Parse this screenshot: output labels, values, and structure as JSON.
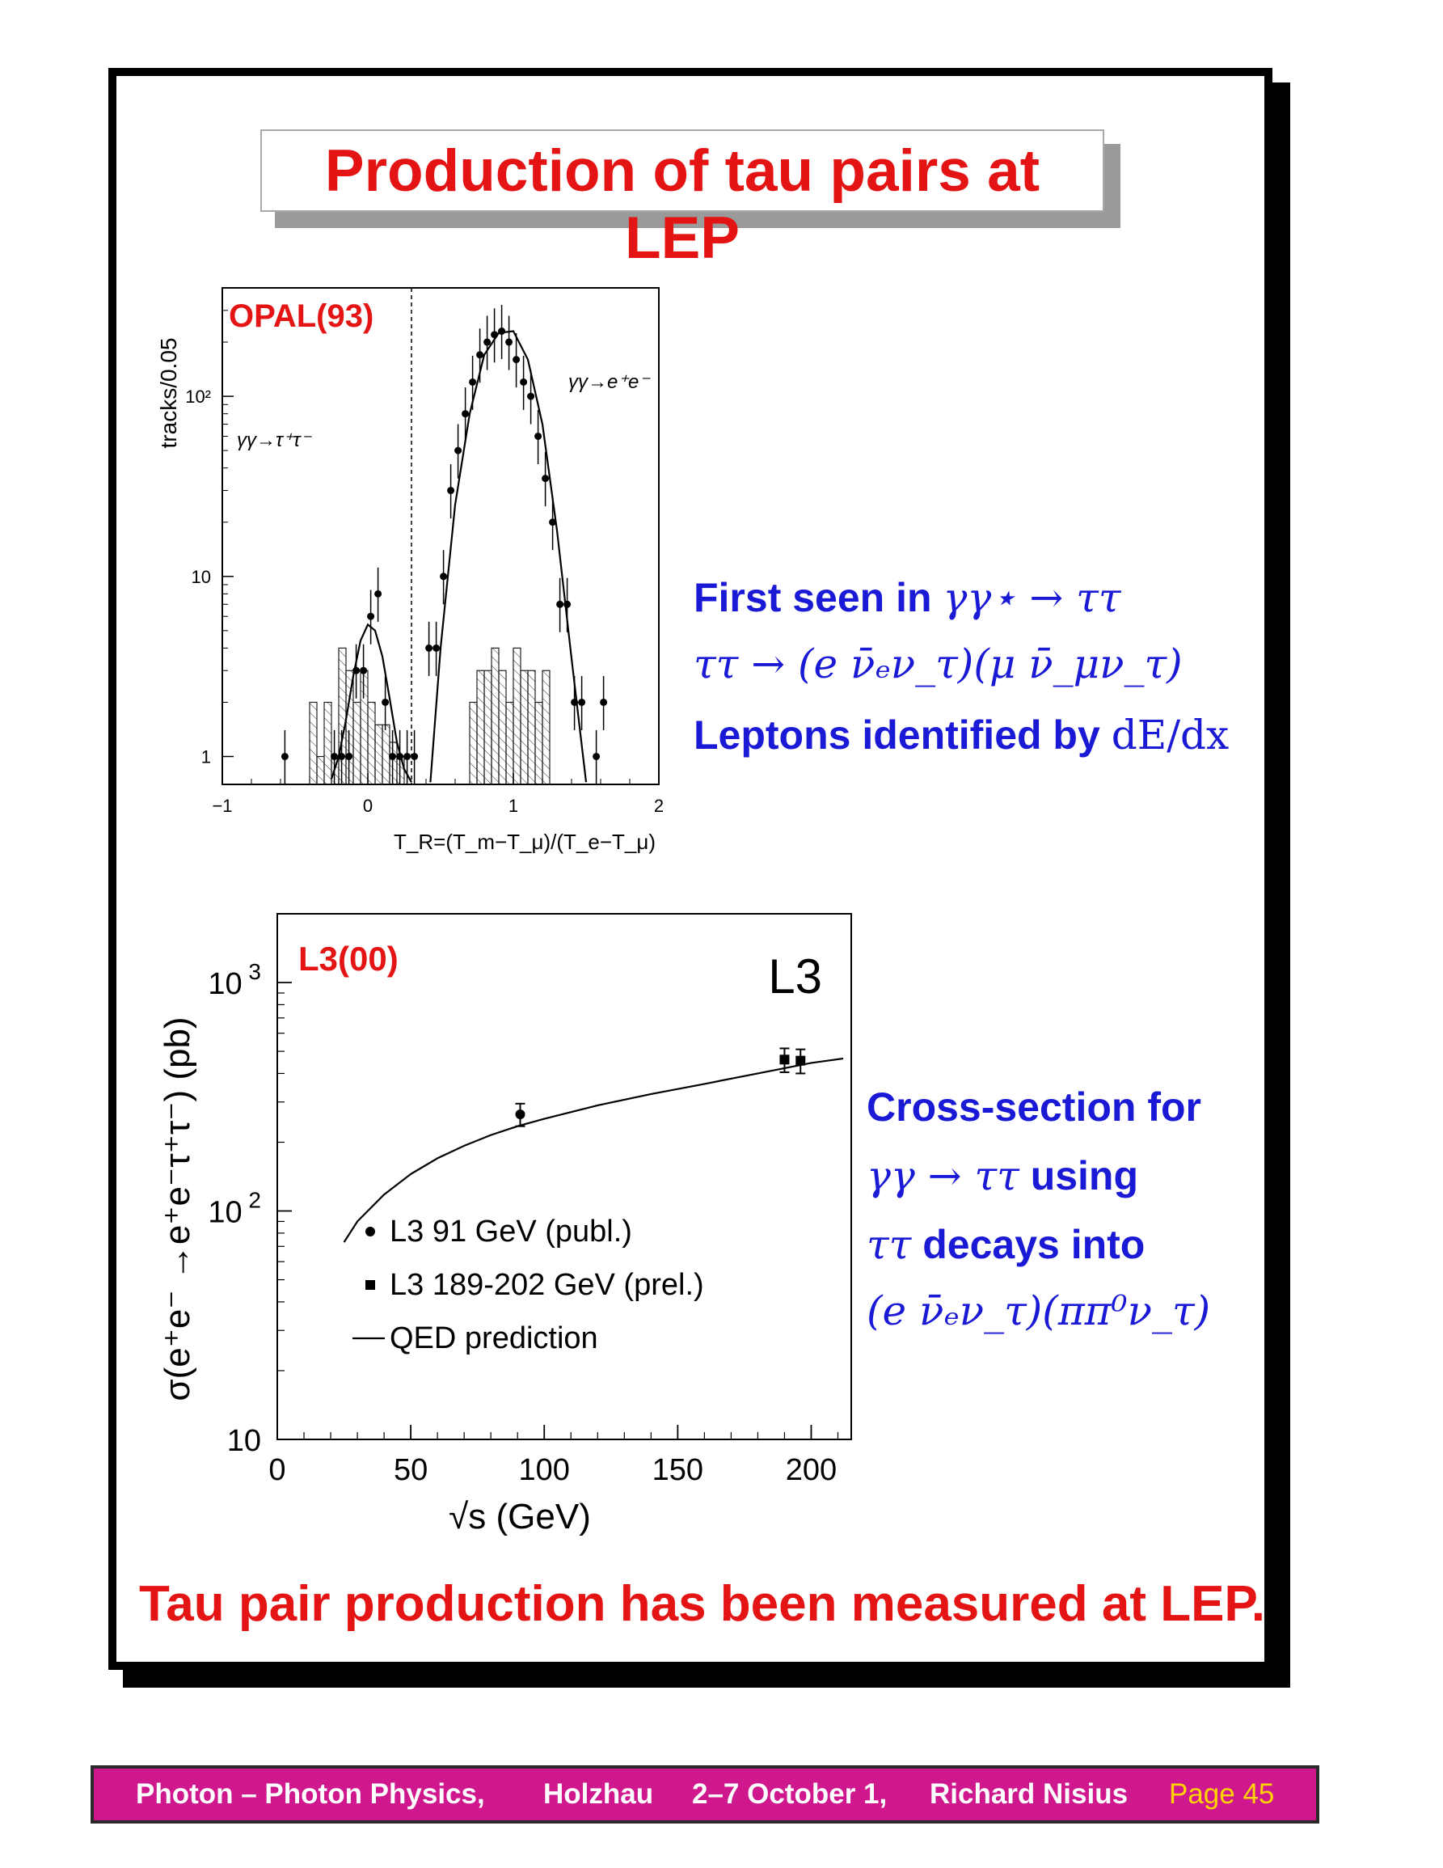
{
  "slide": {
    "title": "Production of tau pairs at LEP",
    "conclusion": "Tau pair production has been measured at LEP."
  },
  "notes_top": {
    "line1_text": "First seen in",
    "line1_math": "γγ⋆ → ττ",
    "line2_math": "ττ → (e ν̄ₑν_τ)(μ ν̄_μν_τ)",
    "line3_text": "Leptons identified by",
    "line3_math": "dE/dx"
  },
  "notes_bottom": {
    "line1": "Cross-section for",
    "line2_math": "γγ → ττ",
    "line2_text": "using",
    "line3_math": "ττ",
    "line3_text": "decays into",
    "line4_math": "(e ν̄ₑν_τ)(ππ⁰ν_τ)"
  },
  "footer": {
    "event": "Photon – Photon Physics,",
    "place": "Holzhau",
    "date": "2–7 October 1,",
    "author": "Richard Nisius",
    "page": "Page 45"
  },
  "colors": {
    "red": "#e41414",
    "blue": "#1a1ad6",
    "footer_bg": "#d0188e",
    "page_yellow": "#ffd400"
  },
  "chart_data": [
    {
      "type": "scatter",
      "experiment_label": "OPAL(93)",
      "xlabel": "T_R=(T_m−T_μ)/(T_e−T_μ)",
      "ylabel": "tracks/0.05",
      "yscale": "log",
      "xlim": [
        -1,
        2
      ],
      "ylim": [
        0.7,
        400
      ],
      "x_ticks": [
        "−1",
        "0",
        "1",
        "2"
      ],
      "y_ticks": [
        {
          "value": 1,
          "label": "1"
        },
        {
          "value": 10,
          "label": "10"
        },
        {
          "value": 100,
          "label": "10²"
        }
      ],
      "cut_line_x": 0.3,
      "annotations": [
        {
          "text": "γγ→τ⁺τ⁻",
          "region": "left"
        },
        {
          "text": "γγ→e⁺e⁻",
          "region": "right"
        }
      ],
      "series": [
        {
          "kind": "points",
          "x": [
            -0.57,
            -0.23,
            -0.18,
            -0.13,
            -0.08,
            -0.03,
            0.02,
            0.07,
            0.12,
            0.17,
            0.22,
            0.27,
            0.32,
            0.42,
            0.47,
            0.52,
            0.57,
            0.62,
            0.67,
            0.72,
            0.77,
            0.82,
            0.87,
            0.92,
            0.97,
            1.02,
            1.07,
            1.12,
            1.17,
            1.22,
            1.27,
            1.32,
            1.37,
            1.42,
            1.47,
            1.57,
            1.62
          ],
          "y": [
            1,
            1,
            1,
            1,
            3,
            3,
            6,
            8,
            2,
            1,
            1,
            1,
            1,
            4,
            4,
            10,
            30,
            50,
            80,
            120,
            170,
            200,
            220,
            230,
            200,
            160,
            120,
            100,
            60,
            35,
            20,
            7,
            7,
            2,
            2,
            1,
            2
          ]
        },
        {
          "kind": "curve",
          "name": "τ⁺τ⁻ fit",
          "x": [
            -0.25,
            -0.2,
            -0.15,
            -0.1,
            -0.05,
            0.0,
            0.05,
            0.1,
            0.15,
            0.2,
            0.25,
            0.3
          ],
          "y": [
            0.75,
            1.0,
            1.6,
            2.8,
            4.4,
            5.4,
            5.0,
            3.6,
            2.1,
            1.2,
            0.85,
            0.72
          ]
        },
        {
          "kind": "curve",
          "name": "e⁺e⁻ fit",
          "x": [
            0.43,
            0.5,
            0.6,
            0.7,
            0.8,
            0.9,
            1.0,
            1.1,
            1.2,
            1.3,
            1.4,
            1.5
          ],
          "y": [
            0.72,
            4,
            25,
            80,
            170,
            225,
            230,
            160,
            70,
            18,
            3.5,
            0.72
          ]
        },
        {
          "kind": "histogram",
          "name": "background",
          "bin_edges": [
            -0.4,
            -0.35,
            -0.3,
            -0.25,
            -0.2,
            -0.15,
            -0.1,
            -0.05,
            0.0,
            0.05,
            0.1,
            0.15,
            0.2,
            0.25,
            0.7,
            0.75,
            0.8,
            0.85,
            0.9,
            0.95,
            1.0,
            1.05,
            1.1,
            1.15,
            1.2,
            1.25
          ],
          "counts": [
            2,
            1,
            2,
            1,
            4,
            3,
            2,
            3,
            2,
            1.5,
            1.5,
            1.2,
            1,
            0,
            2,
            3,
            3,
            4,
            3,
            2,
            4,
            3,
            3,
            2,
            3
          ]
        }
      ]
    },
    {
      "type": "scatter",
      "experiment_label": "L3(00)",
      "logo": "L3",
      "xlabel": "√s (GeV)",
      "ylabel": "σ(e⁺e⁻ →e⁺e⁻τ⁺τ⁻) (pb)",
      "yscale": "log",
      "xlim": [
        0,
        215
      ],
      "ylim": [
        10,
        2000
      ],
      "x_ticks": [
        "0",
        "50",
        "100",
        "150",
        "200"
      ],
      "y_ticks": [
        {
          "value": 10,
          "label": "10"
        },
        {
          "value": 100,
          "label": "10 2"
        },
        {
          "value": 1000,
          "label": "10 3"
        }
      ],
      "legend_position": "bottom-left",
      "series": [
        {
          "name": "L3 91 GeV (publ.)",
          "marker": "circle",
          "x": [
            91
          ],
          "y": [
            265
          ],
          "yerr": [
            30
          ]
        },
        {
          "name": "L3 189-202 GeV (prel.)",
          "marker": "square",
          "x": [
            190,
            196
          ],
          "y": [
            460,
            455
          ],
          "yerr": [
            55,
            55
          ]
        },
        {
          "name": "QED prediction",
          "marker": "line",
          "x": [
            25,
            30,
            40,
            50,
            60,
            70,
            80,
            90,
            100,
            120,
            140,
            160,
            180,
            200,
            212
          ],
          "y": [
            73,
            90,
            118,
            145,
            170,
            193,
            215,
            235,
            253,
            290,
            325,
            360,
            400,
            445,
            465
          ]
        }
      ]
    }
  ]
}
